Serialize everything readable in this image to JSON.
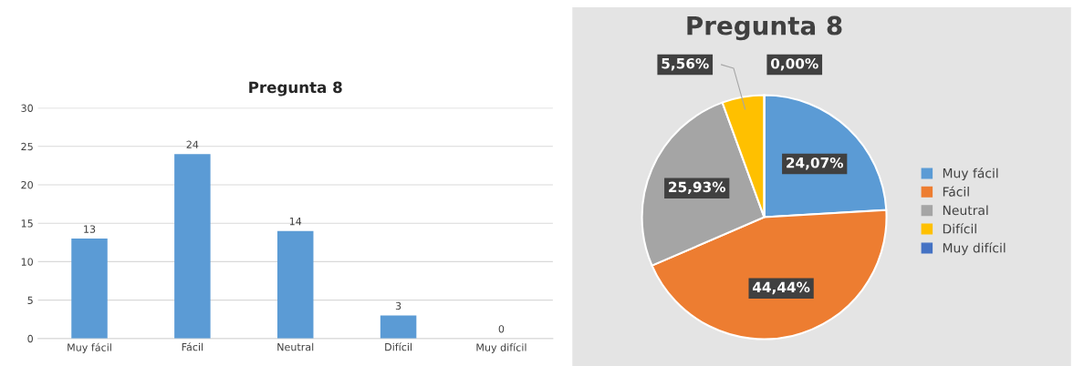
{
  "chart_data": [
    {
      "type": "bar",
      "title": "Pregunta 8",
      "categories": [
        "Muy fácil",
        "Fácil",
        "Neutral",
        "Difícil",
        "Muy difícil"
      ],
      "values": [
        13,
        24,
        14,
        3,
        0
      ],
      "color": "#5b9bd5",
      "ylim": [
        0,
        30
      ],
      "yticks": [
        0,
        5,
        10,
        15,
        20,
        25,
        30
      ],
      "grid": "y",
      "data_labels": true
    },
    {
      "type": "pie",
      "title": "Pregunta 8",
      "categories": [
        "Muy fácil",
        "Fácil",
        "Neutral",
        "Difícil",
        "Muy difícil"
      ],
      "values": [
        24.07,
        44.44,
        25.93,
        5.56,
        0.0
      ],
      "colors": [
        "#5b9bd5",
        "#ed7d31",
        "#a5a5a5",
        "#ffc000",
        "#4472c4"
      ],
      "value_labels": [
        "24,07%",
        "44,44%",
        "25,93%",
        "5,56%",
        "0,00%"
      ],
      "legend": "right"
    }
  ]
}
